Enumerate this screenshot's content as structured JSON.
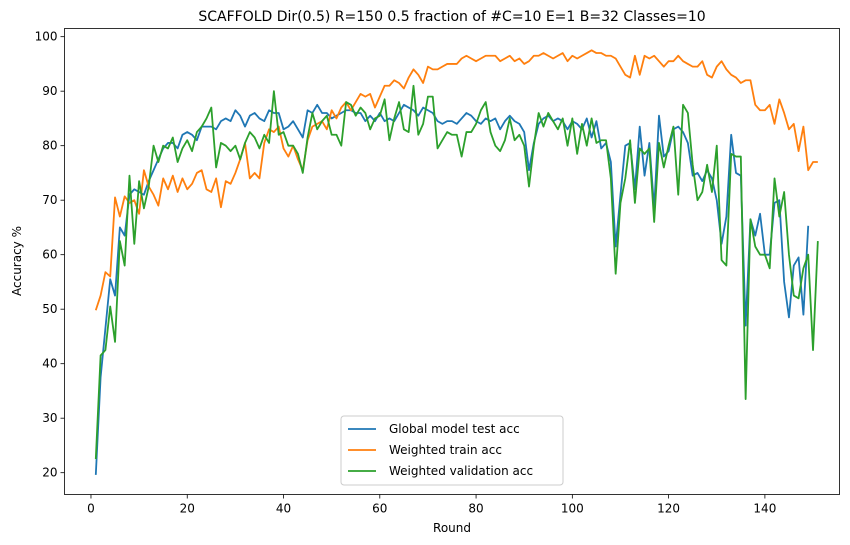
{
  "chart_data": {
    "type": "line",
    "title": "SCAFFOLD Dir(0.5) R=150 0.5 fraction of #C=10 E=1 B=32  Classes=10",
    "xlabel": "Round",
    "ylabel": "Accuracy %",
    "xlim": [
      -5.5,
      155.5
    ],
    "ylim": [
      16,
      101.5
    ],
    "xticks": [
      0,
      20,
      40,
      60,
      80,
      100,
      120,
      140
    ],
    "yticks": [
      20,
      30,
      40,
      50,
      60,
      70,
      80,
      90,
      100
    ],
    "grid": false,
    "legend_position": "bottom-center",
    "series": [
      {
        "name": "Global model test acc",
        "color": "#1f77b4",
        "values": [
          19.6,
          37.5,
          46.5,
          55.5,
          52.5,
          65.0,
          63.5,
          71.0,
          72.0,
          71.5,
          71.0,
          73.5,
          75.5,
          77.5,
          79.5,
          80.5,
          80.5,
          79.5,
          82.0,
          82.5,
          82.0,
          81.0,
          83.5,
          83.5,
          83.5,
          83.0,
          84.5,
          85.0,
          84.5,
          86.5,
          85.5,
          83.5,
          85.5,
          86.0,
          85.0,
          84.5,
          86.5,
          86.0,
          86.0,
          83.0,
          83.5,
          84.5,
          83.0,
          81.5,
          86.5,
          86.0,
          87.5,
          86.0,
          86.0,
          85.0,
          85.5,
          86.0,
          86.5,
          86.5,
          86.0,
          86.0,
          84.5,
          85.5,
          84.5,
          86.0,
          84.5,
          85.0,
          84.5,
          86.0,
          87.5,
          87.0,
          86.5,
          85.5,
          87.0,
          86.5,
          86.0,
          84.5,
          84.0,
          84.5,
          84.5,
          84.0,
          85.0,
          86.0,
          85.5,
          84.5,
          84.0,
          85.0,
          84.5,
          85.0,
          83.0,
          84.5,
          85.5,
          84.5,
          84.0,
          82.5,
          75.5,
          80.5,
          84.0,
          85.0,
          85.5,
          84.5,
          85.0,
          84.5,
          83.0,
          84.5,
          84.0,
          83.0,
          85.0,
          81.5,
          84.5,
          79.5,
          80.5,
          77.0,
          61.5,
          71.0,
          80.0,
          80.5,
          72.0,
          83.5,
          74.5,
          80.5,
          68.5,
          85.5,
          78.0,
          79.0,
          83.0,
          83.5,
          82.5,
          80.5,
          74.5,
          75.0,
          73.5,
          75.5,
          74.0,
          70.0,
          62.0,
          67.0,
          82.0,
          75.0,
          74.5,
          47.0,
          66.5,
          63.5,
          67.5,
          60.0,
          60.0,
          69.5,
          70.0,
          55.0,
          48.5,
          58.0,
          59.5,
          49.0,
          65.3
        ]
      },
      {
        "name": "Weighted train acc",
        "color": "#ff7f0e",
        "values": [
          49.8,
          52.5,
          56.8,
          56.0,
          70.5,
          67.0,
          70.7,
          69.5,
          70.0,
          67.5,
          75.5,
          72.5,
          71.0,
          69.0,
          74.0,
          72.0,
          74.5,
          71.5,
          74.0,
          72.0,
          73.0,
          75.0,
          75.5,
          72.0,
          71.5,
          74.0,
          68.7,
          73.5,
          73.0,
          75.0,
          77.5,
          80.5,
          74.0,
          75.0,
          74.0,
          80.5,
          83.0,
          82.5,
          83.5,
          79.5,
          78.0,
          80.0,
          77.5,
          75.5,
          81.0,
          83.5,
          84.0,
          84.5,
          83.0,
          86.5,
          85.0,
          87.0,
          88.0,
          86.5,
          88.0,
          89.5,
          89.0,
          89.5,
          87.0,
          89.0,
          91.0,
          91.0,
          92.0,
          91.5,
          90.5,
          92.5,
          94.0,
          93.0,
          91.5,
          94.5,
          94.0,
          94.0,
          94.5,
          95.0,
          95.0,
          95.0,
          96.0,
          96.5,
          96.0,
          95.5,
          96.0,
          96.5,
          96.5,
          96.5,
          95.5,
          96.0,
          96.5,
          95.5,
          96.0,
          95.0,
          95.5,
          96.5,
          96.5,
          97.0,
          96.5,
          96.0,
          96.5,
          97.0,
          95.5,
          96.5,
          96.0,
          96.5,
          97.0,
          97.5,
          97.0,
          97.0,
          96.5,
          96.5,
          96.0,
          94.5,
          93.0,
          92.5,
          96.5,
          93.0,
          96.5,
          96.0,
          96.5,
          95.5,
          94.5,
          95.5,
          95.5,
          96.5,
          95.5,
          95.0,
          94.5,
          94.5,
          95.5,
          93.0,
          92.5,
          94.5,
          95.5,
          94.0,
          93.0,
          92.5,
          91.5,
          92.0,
          92.0,
          87.5,
          86.5,
          86.5,
          87.5,
          84.0,
          88.5,
          86.0,
          83.0,
          84.0,
          79.0,
          83.5,
          75.5,
          77.0,
          77.0
        ]
      },
      {
        "name": "Weighted validation acc",
        "color": "#2ca02c",
        "values": [
          22.5,
          41.5,
          42.5,
          50.5,
          44.0,
          62.5,
          58.0,
          74.5,
          62.0,
          73.5,
          68.5,
          72.5,
          80.0,
          77.0,
          80.0,
          79.5,
          81.5,
          77.0,
          79.5,
          81.0,
          79.0,
          82.5,
          83.5,
          85.0,
          87.0,
          76.0,
          80.5,
          80.0,
          79.0,
          80.0,
          77.5,
          80.5,
          82.5,
          81.5,
          79.5,
          82.0,
          80.5,
          90.0,
          82.0,
          82.5,
          80.0,
          80.0,
          78.5,
          75.0,
          81.5,
          86.0,
          83.0,
          84.5,
          85.5,
          82.0,
          82.0,
          80.0,
          88.0,
          87.5,
          85.5,
          87.0,
          86.0,
          83.0,
          85.0,
          85.5,
          88.5,
          81.0,
          85.0,
          88.0,
          83.0,
          82.5,
          91.0,
          82.0,
          84.0,
          89.0,
          89.0,
          79.5,
          81.0,
          82.5,
          82.0,
          82.0,
          78.0,
          82.5,
          82.5,
          84.0,
          86.5,
          88.0,
          82.5,
          80.0,
          79.0,
          81.0,
          85.0,
          81.0,
          82.0,
          80.0,
          72.5,
          80.0,
          86.0,
          83.5,
          86.0,
          84.5,
          83.0,
          85.0,
          80.0,
          85.0,
          78.5,
          84.0,
          80.0,
          85.0,
          80.5,
          81.0,
          81.0,
          74.0,
          56.5,
          69.5,
          74.0,
          81.0,
          69.5,
          79.5,
          78.5,
          79.5,
          66.0,
          80.5,
          76.0,
          80.0,
          83.5,
          71.0,
          87.5,
          86.0,
          76.5,
          70.0,
          71.5,
          76.5,
          71.5,
          80.0,
          59.0,
          58.0,
          78.5,
          78.0,
          78.0,
          33.5,
          66.5,
          61.5,
          60.0,
          60.0,
          57.5,
          74.0,
          67.0,
          71.5,
          60.0,
          52.5,
          52.0,
          57.5,
          60.0,
          42.5,
          62.5
        ]
      }
    ]
  }
}
